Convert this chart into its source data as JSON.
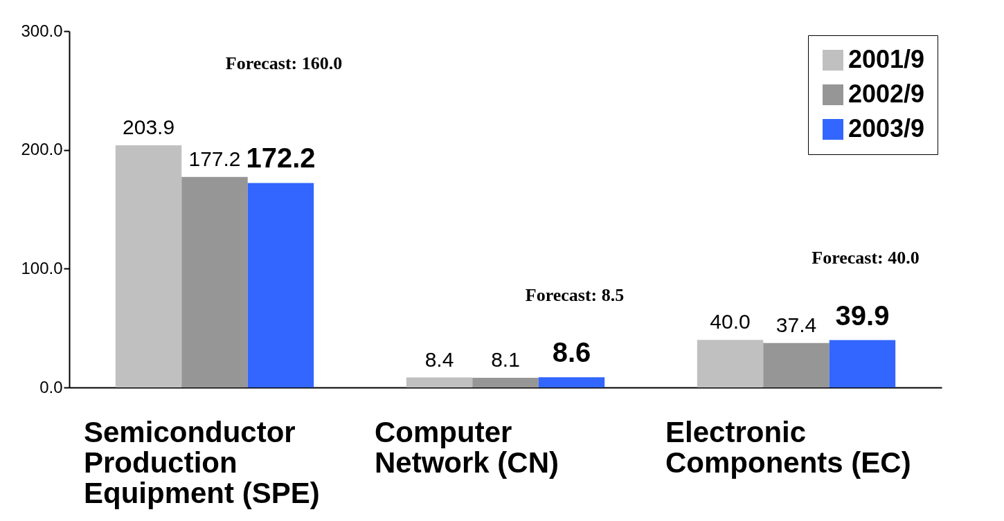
{
  "chart_data": {
    "type": "bar",
    "categories": [
      "Semiconductor Production Equipment (SPE)",
      "Computer Network (CN)",
      "Electronic Components (EC)"
    ],
    "series": [
      {
        "name": "2001/9",
        "color": "#c0c0c0",
        "values": [
          203.9,
          8.4,
          40.0
        ],
        "value_labels": [
          "203.9",
          "8.4",
          "40.0"
        ]
      },
      {
        "name": "2002/9",
        "color": "#969696",
        "values": [
          177.2,
          8.1,
          37.4
        ],
        "value_labels": [
          "177.2",
          "8.1",
          "37.4"
        ]
      },
      {
        "name": "2003/9",
        "color": "#3366ff",
        "values": [
          172.2,
          8.6,
          39.9
        ],
        "value_labels": [
          "172.2",
          "8.6",
          "39.9"
        ]
      }
    ],
    "ylim": [
      0,
      300
    ],
    "yticks": [
      {
        "value": 0,
        "label": "0.0"
      },
      {
        "value": 100,
        "label": "100.0"
      },
      {
        "value": 200,
        "label": "200.0"
      },
      {
        "value": 300,
        "label": "300.0"
      }
    ],
    "annotations": [
      "Forecast: 160.0",
      "Forecast: 8.5",
      "Forecast: 40.0"
    ],
    "legend": "top right"
  }
}
